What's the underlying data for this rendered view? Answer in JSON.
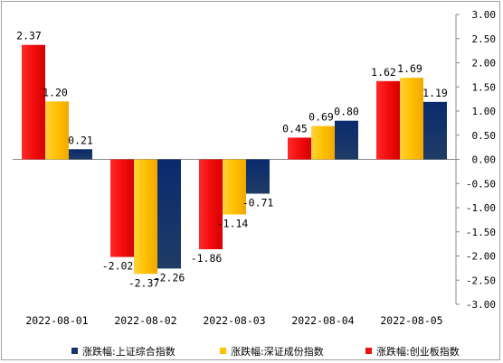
{
  "chart_data": {
    "type": "bar",
    "categories": [
      "2022-08-01",
      "2022-08-02",
      "2022-08-03",
      "2022-08-04",
      "2022-08-05"
    ],
    "series": [
      {
        "name": "涨跌幅:创业板指数",
        "color": "#ee1111",
        "values": [
          2.37,
          -2.02,
          -1.86,
          0.45,
          1.62
        ]
      },
      {
        "name": "涨跌幅:深证成份指数",
        "color": "#ffc000",
        "values": [
          1.2,
          -2.37,
          -1.14,
          0.69,
          1.69
        ]
      },
      {
        "name": "涨跌幅:上证综合指数",
        "color": "#14346a",
        "values": [
          0.21,
          -2.26,
          -0.71,
          0.8,
          1.19
        ]
      }
    ],
    "legend_order": [
      "涨跌幅:上证综合指数",
      "涨跌幅:深证成份指数",
      "涨跌幅:创业板指数"
    ],
    "y_ticks": [
      "3.00",
      "2.50",
      "2.00",
      "1.50",
      "1.00",
      "0.50",
      "0.00",
      "-0.50",
      "-1.00",
      "-1.50",
      "-2.00",
      "-2.50",
      "-3.00"
    ],
    "ylim": [
      -3.0,
      3.0
    ],
    "y_axis_position": "right",
    "legend_position": "bottom",
    "grid": false,
    "title": "",
    "xlabel": "",
    "ylabel": ""
  }
}
